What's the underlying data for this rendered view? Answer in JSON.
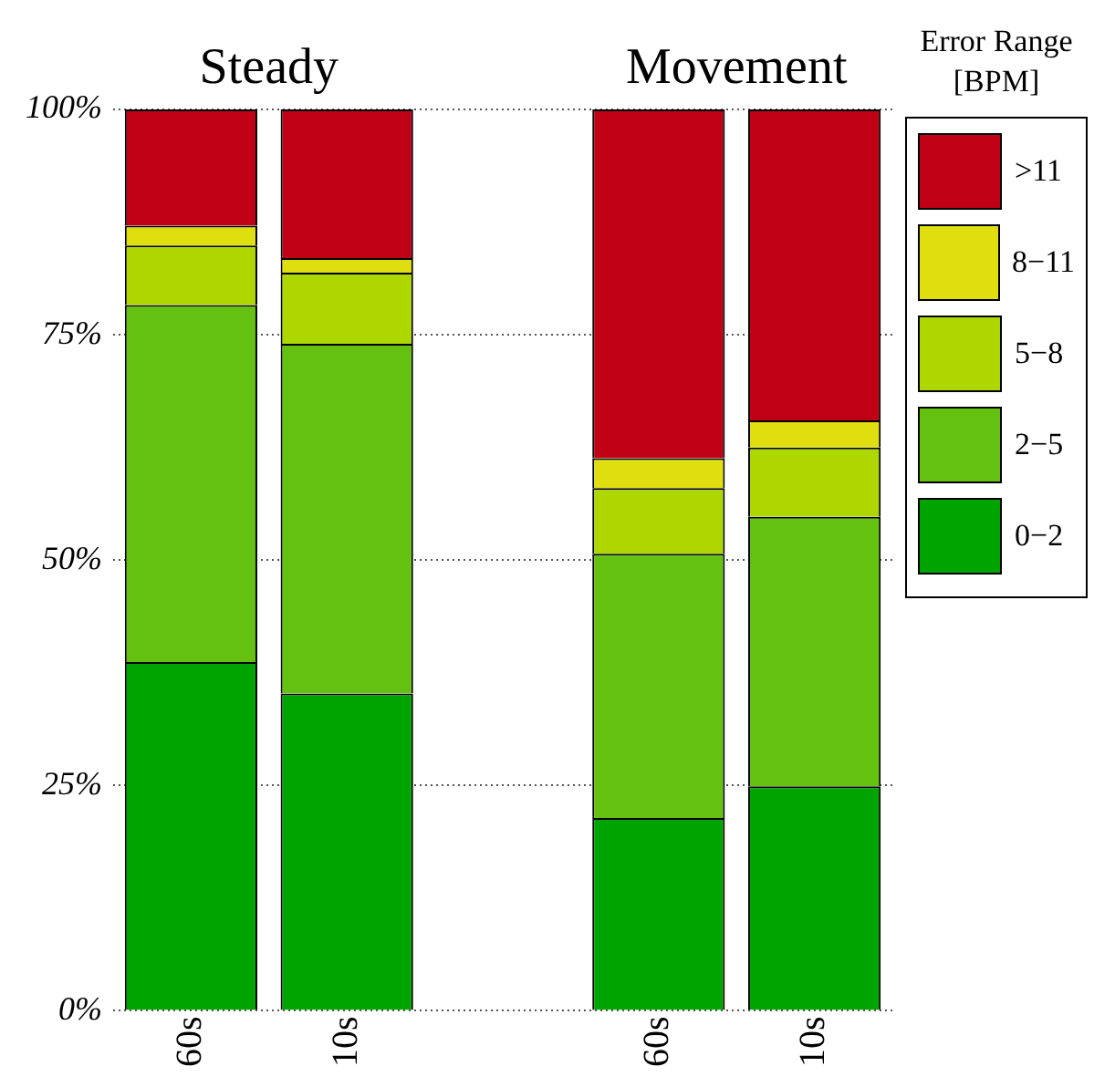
{
  "chart_data": {
    "type": "bar",
    "stacked": true,
    "categories": [
      "60s",
      "10s",
      null,
      "60s",
      "10s"
    ],
    "series": [
      {
        "name": "0−2",
        "color": "#00a400",
        "values": [
          38.7,
          35.2,
          null,
          21.4,
          24.9
        ]
      },
      {
        "name": "2−5",
        "color": "#64c10f",
        "values": [
          39.6,
          38.8,
          null,
          29.3,
          29.9
        ]
      },
      {
        "name": "5−8",
        "color": "#aed700",
        "values": [
          6.6,
          7.9,
          null,
          7.3,
          7.7
        ]
      },
      {
        "name": "8−11",
        "color": "#dfdf0f",
        "values": [
          2.2,
          1.6,
          null,
          3.3,
          3.0
        ]
      },
      {
        "name": ">11",
        "color": "#c00014",
        "values": [
          12.9,
          16.5,
          null,
          38.7,
          34.5
        ]
      }
    ],
    "ylim": [
      0,
      100
    ],
    "yticks": [
      {
        "value": 0,
        "label": "0%"
      },
      {
        "value": 25,
        "label": "25%"
      },
      {
        "value": 50,
        "label": "50%"
      },
      {
        "value": 75,
        "label": "75%"
      },
      {
        "value": 100,
        "label": "100%"
      }
    ],
    "grid": "y",
    "legend": "top right",
    "legend_title": "Error Range [BPM]",
    "annotations": [
      "Steady",
      "Movement"
    ]
  }
}
